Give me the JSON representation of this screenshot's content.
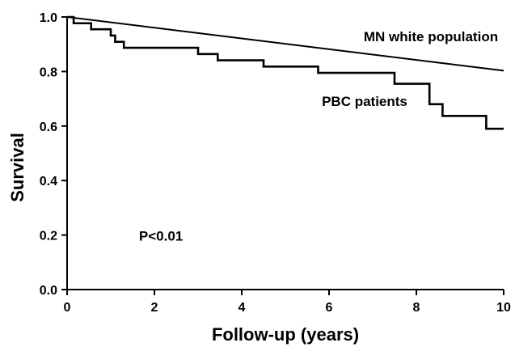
{
  "chart_data": {
    "type": "line",
    "xlabel": "Follow-up (years)",
    "ylabel": "Survival",
    "xlim": [
      0,
      10
    ],
    "ylim": [
      0.0,
      1.0
    ],
    "x_ticks": [
      0,
      2,
      4,
      6,
      8,
      10
    ],
    "x_tick_labels": [
      "0",
      "2",
      "4",
      "6",
      "8",
      "10"
    ],
    "y_ticks": [
      0.0,
      0.2,
      0.4,
      0.6,
      0.8,
      1.0
    ],
    "y_tick_labels": [
      "0.0",
      "0.2",
      "0.4",
      "0.6",
      "0.8",
      "1.0"
    ],
    "grid": false,
    "series": [
      {
        "name": "MN white population",
        "style": "straight",
        "x": [
          0,
          10
        ],
        "y": [
          1.0,
          0.803
        ]
      },
      {
        "name": "PBC patients",
        "style": "step",
        "x": [
          0,
          0.15,
          0.55,
          1.0,
          1.1,
          1.3,
          3.0,
          3.45,
          4.5,
          5.75,
          7.5,
          8.3,
          8.6,
          9.6,
          10
        ],
        "y": [
          1.0,
          0.977,
          0.955,
          0.932,
          0.909,
          0.887,
          0.864,
          0.841,
          0.818,
          0.795,
          0.755,
          0.68,
          0.637,
          0.59,
          0.59
        ]
      }
    ],
    "annotations": [
      {
        "text": "P<0.01",
        "x": 2.15,
        "y": 0.18
      }
    ],
    "colors": {
      "line": "#000000",
      "text": "#000000",
      "background": "#ffffff"
    }
  }
}
